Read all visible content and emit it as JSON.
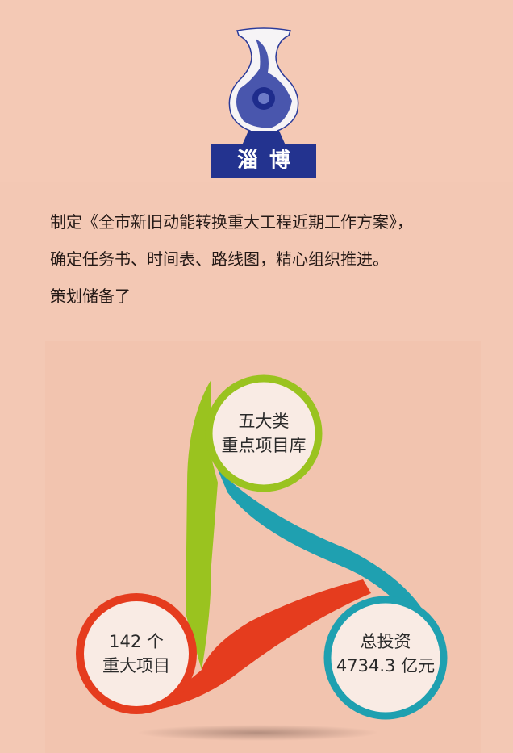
{
  "logo": {
    "label": "淄博",
    "icon": "blue-white-porcelain-vase"
  },
  "intro": {
    "lines": [
      "制定《全市新旧动能转换重大工程近期工作方案》，",
      "确定任务书、时间表、路线图，精心组织推进。",
      "策划储备了"
    ]
  },
  "diagram": {
    "nodes": [
      {
        "line1": "五大类",
        "line2": "重点项目库",
        "color": "#9ac31f"
      },
      {
        "line1": "142 个",
        "line2": "重大项目",
        "color": "#e53c1e"
      },
      {
        "line1": "总投资",
        "line2": "4734.3 亿元",
        "color": "#1fa0b0"
      }
    ],
    "circle_fill": "#f9ebe4"
  }
}
